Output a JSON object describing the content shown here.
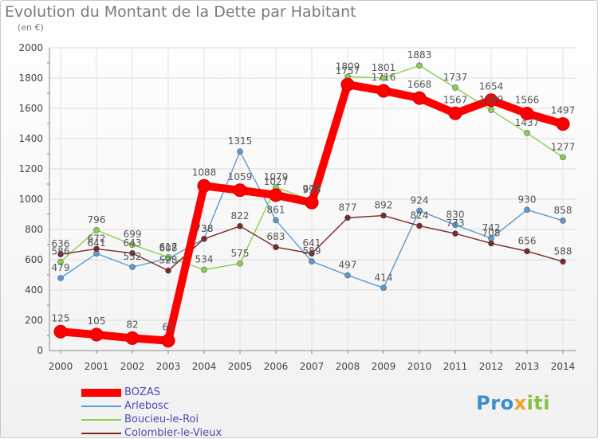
{
  "title": "Evolution du Montant de la Dette par Habitant",
  "unit_label": "(en €)",
  "brand": {
    "part1": "Pro",
    "part2": "x",
    "part3": "iti"
  },
  "chart_data": {
    "type": "line",
    "title": "Evolution du Montant de la Dette par Habitant",
    "ylabel": "(en €)",
    "xlabel": "",
    "x": [
      "2000",
      "2001",
      "2002",
      "2003",
      "2004",
      "2005",
      "2006",
      "2007",
      "2008",
      "2009",
      "2010",
      "2011",
      "2012",
      "2013",
      "2014"
    ],
    "ylim": [
      0,
      2000
    ],
    "yticks": [
      0,
      200,
      400,
      600,
      800,
      1000,
      1200,
      1400,
      1600,
      1800,
      2000
    ],
    "grid": true,
    "legend_position": "bottom-left",
    "series": [
      {
        "name": "BOZAS",
        "color": "#ff0000",
        "values": [
          125,
          105,
          82,
          65,
          1088,
          1059,
          1027,
          978,
          1757,
          1716,
          1668,
          1567,
          1654,
          1566,
          1497
        ]
      },
      {
        "name": "Arlebosc",
        "color": "#5b9bd5",
        "values": [
          479,
          641,
          552,
          608,
          738,
          1315,
          861,
          589,
          497,
          414,
          924,
          830,
          742,
          930,
          858
        ]
      },
      {
        "name": "Boucieu-le-Roi",
        "color": "#88d050",
        "values": [
          586,
          796,
          699,
          617,
          534,
          575,
          1079,
          993,
          1809,
          1801,
          1883,
          1737,
          1589,
          1437,
          1277
        ]
      },
      {
        "name": "Colombier-le-Vieux",
        "color": "#7a2a2a",
        "values": [
          636,
          672,
          643,
          528,
          738,
          822,
          683,
          641,
          877,
          892,
          824,
          773,
          708,
          656,
          588
        ]
      }
    ]
  }
}
